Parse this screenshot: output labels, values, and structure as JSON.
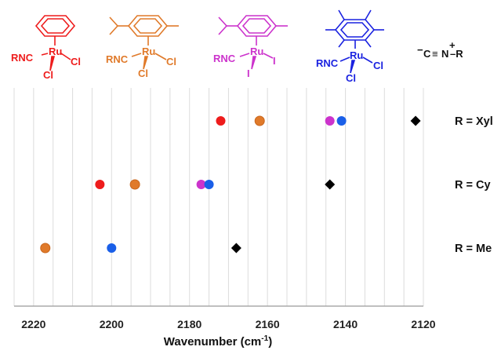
{
  "chart_data": {
    "type": "scatter",
    "xlabel": "Wavenumber (cm",
    "xlabel_sup": "-1",
    "xlabel_tail": ")",
    "xlim": [
      2225,
      2120
    ],
    "x_reversed": true,
    "x_ticks": [
      2220,
      2200,
      2180,
      2160,
      2140,
      2120
    ],
    "grid": "vertical",
    "categories": [
      "R = Xyl",
      "R = Cy",
      "R = Me"
    ],
    "series": [
      {
        "key": "benzene",
        "color": "#ee1c1c",
        "marker": "circle",
        "values": [
          2172,
          2203,
          null
        ]
      },
      {
        "key": "cymene",
        "color": "#e07a2a",
        "marker": "circle",
        "values": [
          2162,
          2194,
          2217
        ]
      },
      {
        "key": "cymene_iodide",
        "color": "#cc33cc",
        "marker": "circle",
        "values": [
          2144,
          2177,
          null
        ]
      },
      {
        "key": "hexamethylbenzene",
        "color": "#1a5fe8",
        "marker": "circle",
        "values": [
          2141,
          2175,
          2200
        ]
      },
      {
        "key": "free_isocyanide",
        "color": "#000000",
        "marker": "diamond",
        "values": [
          2122,
          2144,
          2168
        ]
      }
    ]
  },
  "structures": [
    {
      "color": "#ee1c1c",
      "metal": "Ru",
      "ligand_left": "RNC",
      "halide_right": "Cl",
      "halide_bottom": "Cl",
      "arene": "benzene"
    },
    {
      "color": "#e07a2a",
      "metal": "Ru",
      "ligand_left": "RNC",
      "halide_right": "Cl",
      "halide_bottom": "Cl",
      "arene": "p-cymene"
    },
    {
      "color": "#cc33cc",
      "metal": "Ru",
      "ligand_left": "RNC",
      "halide_right": "I",
      "halide_bottom": "I",
      "arene": "p-cymene"
    },
    {
      "color": "#1a22e0",
      "metal": "Ru",
      "ligand_left": "RNC",
      "halide_right": "Cl",
      "halide_bottom": "Cl",
      "arene": "hexamethylbenzene"
    }
  ],
  "free_ligand": {
    "minus": "−",
    "c": "C",
    "triple": "≡",
    "n": "N",
    "plus": "+",
    "r": "–R"
  }
}
